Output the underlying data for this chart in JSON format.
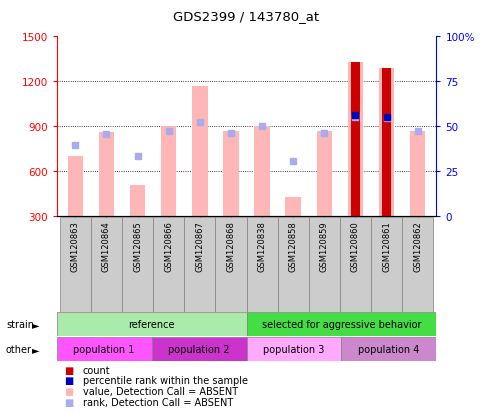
{
  "title": "GDS2399 / 143780_at",
  "samples": [
    "GSM120863",
    "GSM120864",
    "GSM120865",
    "GSM120866",
    "GSM120867",
    "GSM120868",
    "GSM120838",
    "GSM120858",
    "GSM120859",
    "GSM120860",
    "GSM120861",
    "GSM120862"
  ],
  "pink_bar_heights": [
    700,
    860,
    510,
    900,
    1170,
    870,
    900,
    430,
    870,
    1330,
    1290,
    870
  ],
  "blue_square_y": [
    775,
    850,
    700,
    870,
    930,
    855,
    900,
    670,
    855,
    960,
    955,
    870
  ],
  "red_bar_heights": [
    0,
    0,
    0,
    0,
    0,
    0,
    0,
    0,
    0,
    1330,
    1290,
    0
  ],
  "percentile_rank_pct": [
    null,
    null,
    null,
    null,
    null,
    null,
    null,
    null,
    null,
    56,
    55,
    null
  ],
  "ylim_left": [
    300,
    1500
  ],
  "ylim_right": [
    0,
    100
  ],
  "yticks_left": [
    300,
    600,
    900,
    1200,
    1500
  ],
  "yticks_right": [
    0,
    25,
    50,
    75,
    100
  ],
  "strain_groups": [
    {
      "label": "reference",
      "start": 0,
      "end": 6,
      "color": "#aaeaaa"
    },
    {
      "label": "selected for aggressive behavior",
      "start": 6,
      "end": 12,
      "color": "#44dd44"
    }
  ],
  "other_groups": [
    {
      "label": "population 1",
      "start": 0,
      "end": 3,
      "color": "#ff55ff"
    },
    {
      "label": "population 2",
      "start": 3,
      "end": 6,
      "color": "#cc33cc"
    },
    {
      "label": "population 3",
      "start": 6,
      "end": 9,
      "color": "#ffaaff"
    },
    {
      "label": "population 4",
      "start": 9,
      "end": 12,
      "color": "#cc88cc"
    }
  ],
  "pink_color": "#ffb6b6",
  "blue_sq_color": "#aaaaee",
  "red_color": "#cc0000",
  "blue_pct_color": "#0000bb",
  "background_color": "#ffffff"
}
